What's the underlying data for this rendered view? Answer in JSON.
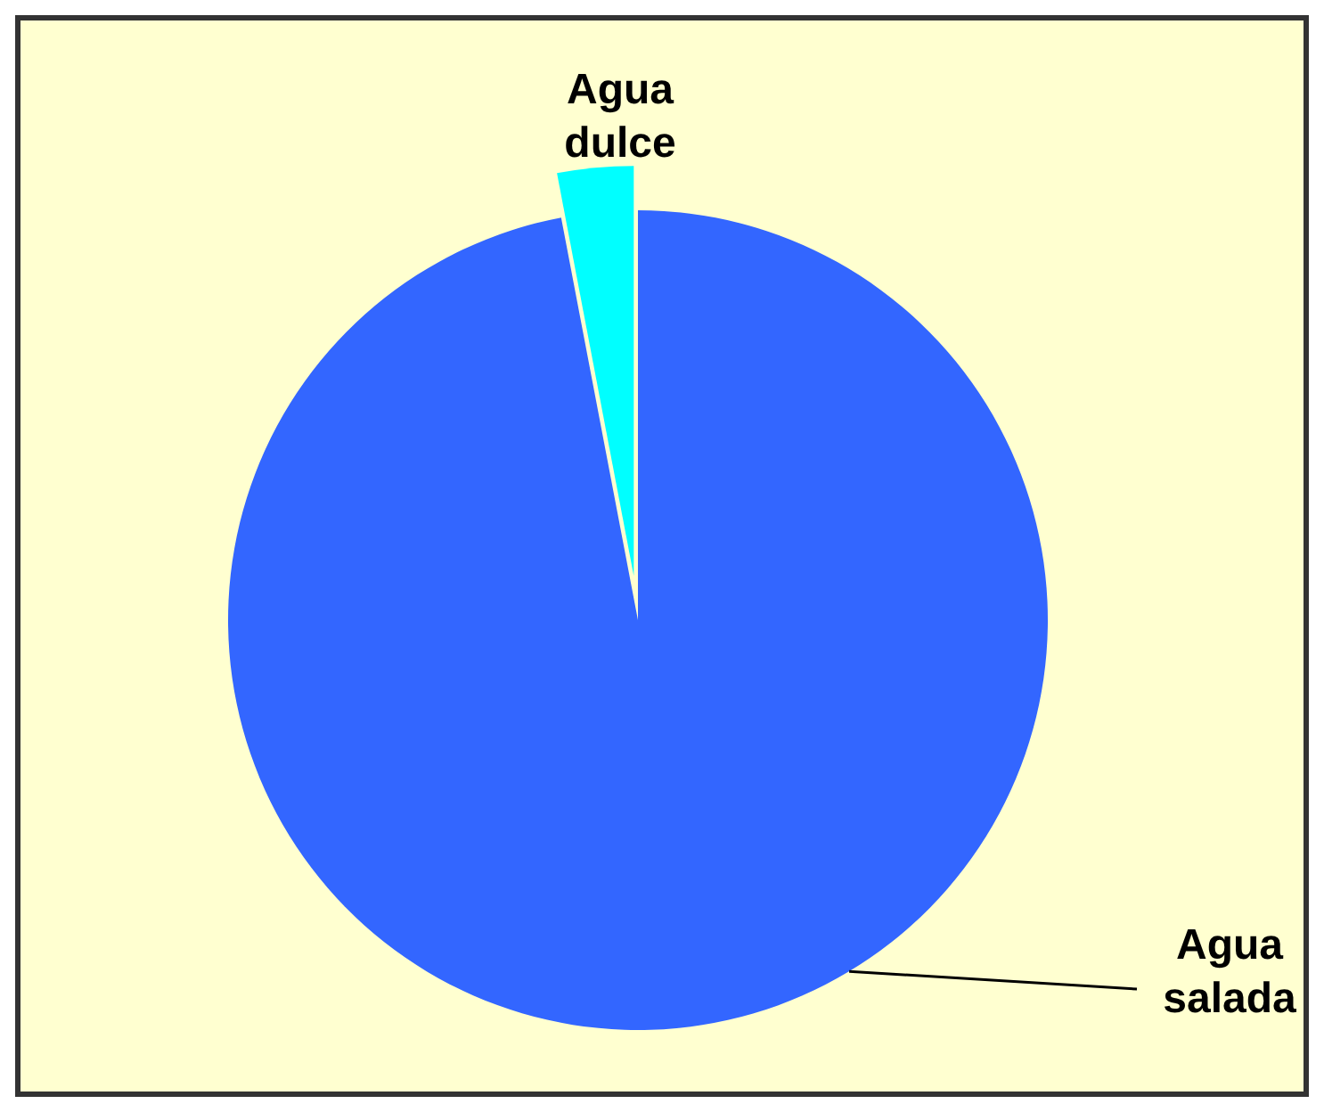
{
  "chart_data": {
    "type": "pie",
    "categories": [
      "Agua dulce",
      "Agua salada"
    ],
    "values": [
      3,
      97
    ],
    "colors": [
      "#00ffff",
      "#3366ff"
    ],
    "legend": false
  }
}
